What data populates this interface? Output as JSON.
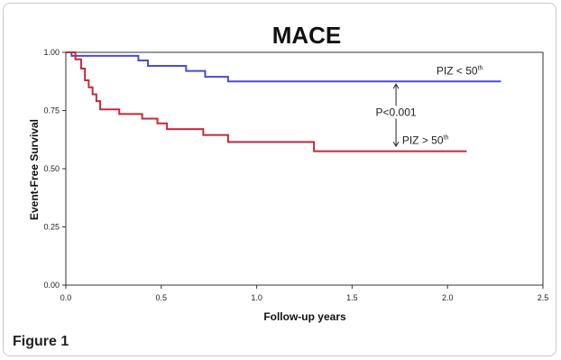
{
  "figure_caption": "Figure 1",
  "chart_data": {
    "type": "line",
    "title": "MACE",
    "xlabel": "Follow-up years",
    "ylabel": "Event-Free Survival",
    "xlim": [
      0,
      2.5
    ],
    "ylim": [
      0,
      1.0
    ],
    "xticks": [
      "0.0",
      "0.5",
      "1.0",
      "1.5",
      "2.0",
      "2.5"
    ],
    "yticks": [
      "0.00",
      "0.25",
      "0.50",
      "0.75",
      "1.00"
    ],
    "grid": false,
    "series": [
      {
        "name": "PIZ < 50th",
        "label_text": "PIZ < 50",
        "label_sup": "th",
        "color": "#4a4ad8",
        "step": true,
        "x": [
          0.0,
          0.03,
          0.38,
          0.43,
          0.63,
          0.73,
          0.85,
          2.28
        ],
        "y": [
          1.0,
          0.985,
          0.965,
          0.942,
          0.92,
          0.895,
          0.875,
          0.875
        ]
      },
      {
        "name": "PIZ > 50th",
        "label_text": "PIZ > 50",
        "label_sup": "th",
        "color": "#c8283c",
        "step": true,
        "x": [
          0.0,
          0.05,
          0.08,
          0.1,
          0.12,
          0.14,
          0.16,
          0.18,
          0.28,
          0.4,
          0.48,
          0.53,
          0.72,
          0.85,
          1.3,
          2.1
        ],
        "y": [
          1.0,
          0.97,
          0.93,
          0.88,
          0.85,
          0.82,
          0.79,
          0.755,
          0.735,
          0.715,
          0.695,
          0.67,
          0.645,
          0.615,
          0.575,
          0.575
        ]
      }
    ],
    "annotation": {
      "text": "P<0.001",
      "x": 1.73,
      "y_top": 0.875,
      "y_bottom": 0.585,
      "label_y": 0.735
    }
  }
}
